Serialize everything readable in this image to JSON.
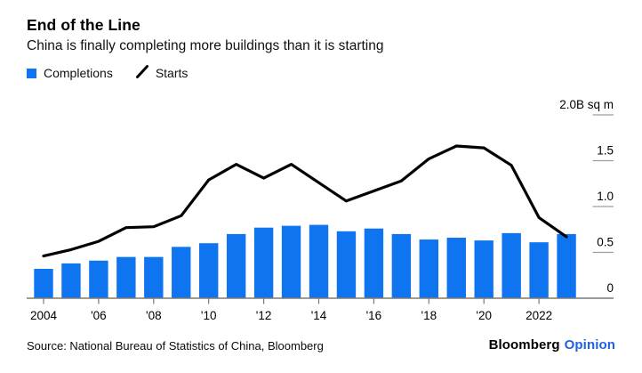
{
  "header": {
    "title": "End of the Line",
    "subtitle": "China is finally completing more buildings than it is starting"
  },
  "legend": {
    "completions_label": "Completions",
    "starts_label": "Starts"
  },
  "footer": {
    "source": "Source: National Bureau of Statistics of China, Bloomberg",
    "logo_black": "Bloomberg",
    "logo_blue": "Opinion"
  },
  "colors": {
    "bar_blue": "#0e74f0",
    "line_black": "#000000",
    "axis_gray": "#7d7a76",
    "dash_gray": "#9e9e9e",
    "text_black": "#000000",
    "logo_blue": "#2160e0"
  },
  "chart_data": {
    "type": "bar",
    "title": "End of the Line",
    "subtitle": "China is finally completing more buildings than it is starting",
    "unit_label": "B sq m",
    "x": [
      2004,
      2005,
      2006,
      2007,
      2008,
      2009,
      2010,
      2011,
      2012,
      2013,
      2014,
      2015,
      2016,
      2017,
      2018,
      2019,
      2020,
      2021,
      2022,
      2023
    ],
    "series": [
      {
        "name": "Completions",
        "type": "bar",
        "color_key": "bar_blue",
        "values": [
          0.32,
          0.38,
          0.41,
          0.45,
          0.45,
          0.56,
          0.6,
          0.7,
          0.77,
          0.79,
          0.8,
          0.73,
          0.76,
          0.7,
          0.64,
          0.66,
          0.63,
          0.71,
          0.61,
          0.7
        ]
      },
      {
        "name": "Starts",
        "type": "line",
        "color_key": "line_black",
        "values": [
          0.46,
          0.53,
          0.62,
          0.77,
          0.78,
          0.9,
          1.29,
          1.46,
          1.31,
          1.46,
          1.26,
          1.06,
          1.17,
          1.28,
          1.52,
          1.66,
          1.64,
          1.45,
          0.88,
          0.67
        ]
      }
    ],
    "ylim": [
      0,
      2.0
    ],
    "y_ticks": [
      {
        "value": 0.0,
        "label": "0"
      },
      {
        "value": 0.5,
        "label": "0.5"
      },
      {
        "value": 1.0,
        "label": "1.0"
      },
      {
        "value": 1.5,
        "label": "1.5"
      },
      {
        "value": 2.0,
        "label": "2.0B sq m"
      }
    ],
    "x_ticks": [
      {
        "year": 2004,
        "label": "2004"
      },
      {
        "year": 2006,
        "label": "'06"
      },
      {
        "year": 2008,
        "label": "'08"
      },
      {
        "year": 2010,
        "label": "'10"
      },
      {
        "year": 2012,
        "label": "'12"
      },
      {
        "year": 2014,
        "label": "'14"
      },
      {
        "year": 2016,
        "label": "'16"
      },
      {
        "year": 2018,
        "label": "'18"
      },
      {
        "year": 2020,
        "label": "'20"
      },
      {
        "year": 2022,
        "label": "2022"
      }
    ],
    "grid": false,
    "legend_position": "top-left",
    "y_axis_side": "right"
  }
}
